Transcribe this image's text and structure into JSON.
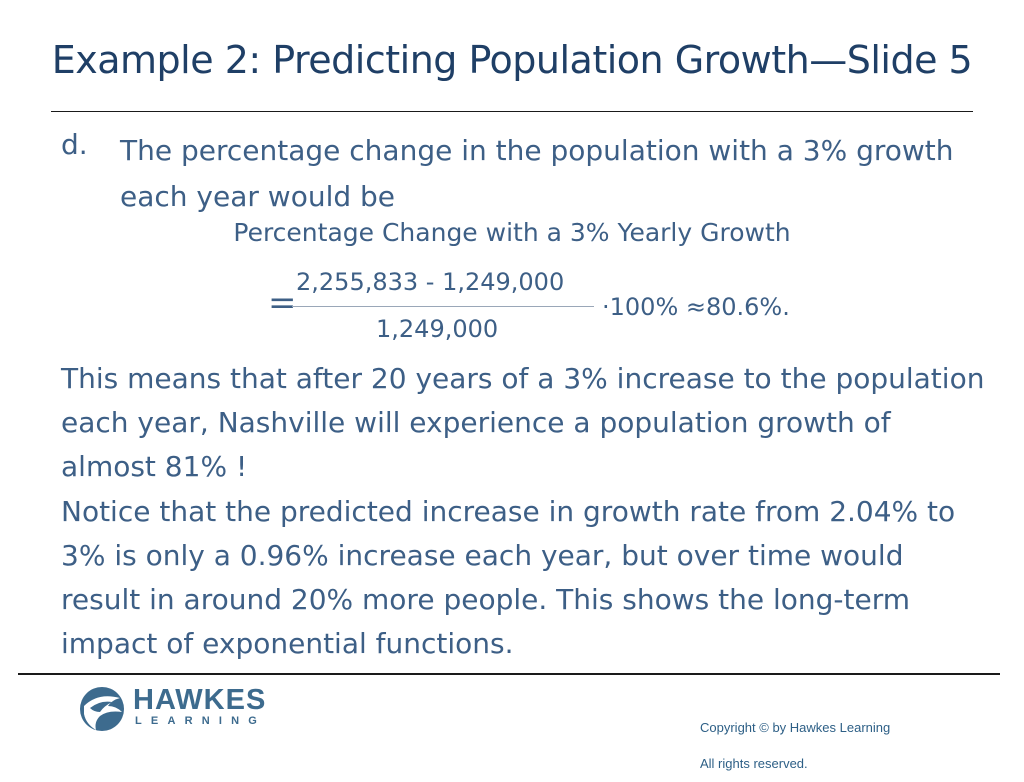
{
  "slide": {
    "title": "Example 2: Predicting Population Growth—Slide 5"
  },
  "item_d": {
    "marker": "d.",
    "text": "The percentage change in the population with a 3% growth each year would be"
  },
  "equation": {
    "caption": "Percentage Change with a 3% Yearly Growth",
    "equals": "=",
    "numerator": "2,255,833 - 1,249,000",
    "denominator": "1,249,000",
    "tail": "·100% ≈80.6%."
  },
  "paragraphs": {
    "meaning": "This means that after 20 years of a 3% increase to the population each year, Nashville will experience a population growth of almost 81% !",
    "notice": "Notice that the predicted increase in growth rate from 2.04% to 3% is only a 0.96% increase each year, but over time would result in around 20% more people. This shows the long-term impact of exponential functions."
  },
  "footer": {
    "logo_word": "HAWKES",
    "logo_sub": "LEARNING",
    "logo_icon": "hawk-head-icon",
    "copyright": "Copyright © by Hawkes Learning",
    "rights": "All rights reserved."
  },
  "colors": {
    "title": "#1f3f66",
    "body": "#3d5f86",
    "logo": "#3d6b8e"
  }
}
